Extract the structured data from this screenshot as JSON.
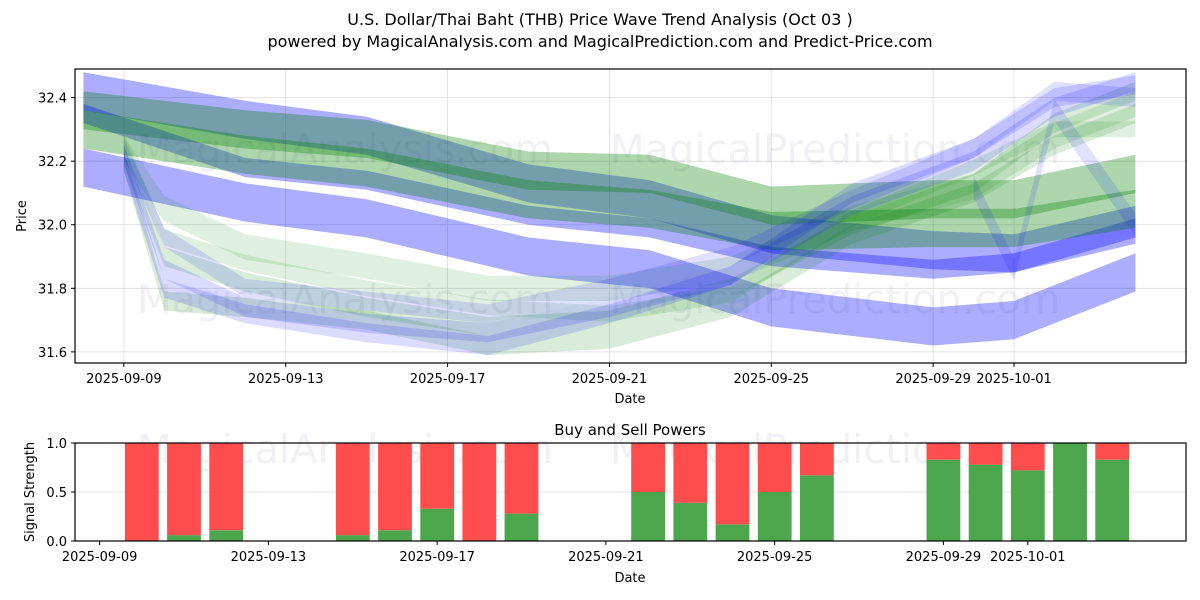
{
  "figure": {
    "title_line1": "U.S. Dollar/Thai Baht (THB) Price Wave Trend Analysis (Oct 03 )",
    "title_line2": "powered by MagicalAnalysis.com and MagicalPrediction.com and Predict-Price.com",
    "watermarks": [
      "MagicalAnalysis.com",
      "MagicalPrediction.com"
    ]
  },
  "chart_data": [
    {
      "type": "area",
      "title": "",
      "xlabel": "Date",
      "ylabel": "Price",
      "ylim": [
        31.565,
        32.49
      ],
      "xlim": [
        "2025-09-07T19:00",
        "2025-10-05T06:00"
      ],
      "grid": true,
      "x_ticks": [
        "2025-09-09",
        "2025-09-13",
        "2025-09-17",
        "2025-09-21",
        "2025-09-25",
        "2025-09-29",
        "2025-10-01"
      ],
      "y_ticks": [
        31.6,
        31.8,
        32.0,
        32.2,
        32.4
      ],
      "colors": {
        "blue": "#0000ff",
        "green": "#008000"
      },
      "series": [
        {
          "name": "blue-band-upper",
          "color": "blue",
          "opacity": 0.32,
          "width": 0.12,
          "x": [
            "2025-09-08",
            "2025-09-12",
            "2025-09-15",
            "2025-09-19",
            "2025-09-22",
            "2025-09-25",
            "2025-09-29",
            "2025-10-01",
            "2025-10-04"
          ],
          "y": [
            32.42,
            32.33,
            32.28,
            32.13,
            32.08,
            31.97,
            31.92,
            31.91,
            32.0
          ]
        },
        {
          "name": "green-band-upper",
          "color": "green",
          "opacity": 0.32,
          "width": 0.12,
          "x": [
            "2025-09-08",
            "2025-09-12",
            "2025-09-15",
            "2025-09-19",
            "2025-09-22",
            "2025-09-25",
            "2025-09-29",
            "2025-10-01",
            "2025-10-04"
          ],
          "y": [
            32.36,
            32.3,
            32.27,
            32.17,
            32.16,
            32.06,
            32.08,
            32.08,
            32.16
          ]
        },
        {
          "name": "blue-band-middle",
          "color": "blue",
          "opacity": 0.32,
          "width": 0.06,
          "x": [
            "2025-09-08",
            "2025-09-12",
            "2025-09-15",
            "2025-09-19",
            "2025-09-22",
            "2025-09-25",
            "2025-09-29",
            "2025-10-01",
            "2025-10-04"
          ],
          "y": [
            32.35,
            32.18,
            32.14,
            32.03,
            31.99,
            31.9,
            31.86,
            31.88,
            31.99
          ]
        },
        {
          "name": "blue-band-lower",
          "color": "blue",
          "opacity": 0.32,
          "width": 0.12,
          "x": [
            "2025-09-08",
            "2025-09-12",
            "2025-09-15",
            "2025-09-19",
            "2025-09-22",
            "2025-09-25",
            "2025-09-29",
            "2025-10-01",
            "2025-10-04"
          ],
          "y": [
            32.18,
            32.07,
            32.02,
            31.9,
            31.86,
            31.74,
            31.68,
            31.7,
            31.85
          ]
        },
        {
          "name": "green-band-mid",
          "color": "green",
          "opacity": 0.32,
          "width": 0.12,
          "x": [
            "2025-09-08",
            "2025-09-12",
            "2025-09-15",
            "2025-09-19",
            "2025-09-22",
            "2025-09-25",
            "2025-09-29",
            "2025-10-01",
            "2025-10-04"
          ],
          "y": [
            32.3,
            32.22,
            32.18,
            32.08,
            32.05,
            31.98,
            31.99,
            31.99,
            32.05
          ]
        },
        {
          "name": "green-wave-1",
          "color": "green",
          "opacity": 0.12,
          "width": 0.08,
          "x": [
            "2025-09-09",
            "2025-09-10",
            "2025-09-12",
            "2025-09-15",
            "2025-09-18",
            "2025-09-21",
            "2025-09-24",
            "2025-09-27",
            "2025-09-30",
            "2025-10-02",
            "2025-10-04"
          ],
          "y": [
            32.24,
            32.05,
            31.93,
            31.87,
            31.8,
            31.8,
            31.86,
            32.02,
            32.12,
            32.28,
            32.38
          ]
        },
        {
          "name": "green-wave-2",
          "color": "green",
          "opacity": 0.15,
          "width": 0.06,
          "x": [
            "2025-09-09",
            "2025-09-10",
            "2025-09-12",
            "2025-09-15",
            "2025-09-18",
            "2025-09-21",
            "2025-09-24",
            "2025-09-27",
            "2025-09-30",
            "2025-10-02",
            "2025-10-04"
          ],
          "y": [
            32.22,
            31.9,
            31.82,
            31.74,
            31.68,
            31.7,
            31.8,
            32.0,
            32.13,
            32.32,
            32.42
          ]
        },
        {
          "name": "green-wave-3",
          "color": "green",
          "opacity": 0.15,
          "width": 0.06,
          "x": [
            "2025-09-09",
            "2025-09-10",
            "2025-09-12",
            "2025-09-15",
            "2025-09-18",
            "2025-09-21",
            "2025-09-24",
            "2025-09-27",
            "2025-09-30",
            "2025-10-02",
            "2025-10-04"
          ],
          "y": [
            32.2,
            31.76,
            31.74,
            31.7,
            31.62,
            31.64,
            31.74,
            31.97,
            32.1,
            32.25,
            32.35
          ]
        },
        {
          "name": "green-wave-4",
          "color": "green",
          "opacity": 0.12,
          "width": 0.05,
          "x": [
            "2025-09-09",
            "2025-09-10",
            "2025-09-12",
            "2025-09-15",
            "2025-09-18",
            "2025-09-21",
            "2025-09-24",
            "2025-09-27",
            "2025-09-30",
            "2025-10-02",
            "2025-10-04"
          ],
          "y": [
            32.26,
            31.96,
            31.88,
            31.8,
            31.74,
            31.72,
            31.78,
            32.02,
            32.18,
            32.3,
            32.3
          ]
        },
        {
          "name": "blue-wave-1",
          "color": "blue",
          "opacity": 0.14,
          "width": 0.06,
          "x": [
            "2025-09-09",
            "2025-09-10",
            "2025-09-12",
            "2025-09-15",
            "2025-09-18",
            "2025-09-21",
            "2025-09-24",
            "2025-09-27",
            "2025-09-30",
            "2025-10-02",
            "2025-10-04"
          ],
          "y": [
            32.22,
            31.86,
            31.74,
            31.69,
            31.66,
            31.74,
            31.84,
            32.06,
            32.2,
            32.37,
            32.45
          ]
        },
        {
          "name": "blue-wave-2",
          "color": "blue",
          "opacity": 0.14,
          "width": 0.06,
          "x": [
            "2025-09-09",
            "2025-09-10",
            "2025-09-12",
            "2025-09-15",
            "2025-09-18",
            "2025-09-21",
            "2025-09-24",
            "2025-09-27",
            "2025-09-30",
            "2025-10-02",
            "2025-10-04"
          ],
          "y": [
            32.2,
            31.8,
            31.72,
            31.66,
            31.62,
            31.72,
            31.84,
            32.1,
            32.24,
            32.4,
            32.44
          ]
        },
        {
          "name": "blue-wave-3",
          "color": "blue",
          "opacity": 0.12,
          "width": 0.06,
          "x": [
            "2025-09-09",
            "2025-09-10",
            "2025-09-12",
            "2025-09-15",
            "2025-09-18",
            "2025-09-21",
            "2025-09-24",
            "2025-09-27",
            "2025-09-30",
            "2025-10-02",
            "2025-10-04"
          ],
          "y": [
            32.24,
            31.96,
            31.8,
            31.76,
            31.72,
            31.8,
            31.9,
            32.08,
            32.24,
            32.42,
            32.4
          ]
        },
        {
          "name": "blue-wave-zigzag",
          "color": "blue",
          "opacity": 0.12,
          "width": 0.07,
          "x": [
            "2025-09-30",
            "2025-10-01",
            "2025-10-02",
            "2025-10-04"
          ],
          "y": [
            32.12,
            31.86,
            32.36,
            32.0
          ]
        }
      ]
    },
    {
      "type": "bar",
      "title": "Buy and Sell Powers",
      "xlabel": "Date",
      "ylabel": "Signal Strength",
      "ylim": [
        0,
        1.0
      ],
      "xlim": [
        "2025-09-08T10:00",
        "2025-10-04T18:00"
      ],
      "grid": true,
      "x_ticks": [
        "2025-09-09",
        "2025-09-13",
        "2025-09-17",
        "2025-09-21",
        "2025-09-25",
        "2025-09-29",
        "2025-10-01"
      ],
      "y_ticks": [
        "0.0",
        "0.5",
        "1.0"
      ],
      "colors": {
        "buy": "#4ca64c",
        "sell": "#ff4c4c"
      },
      "categories": [
        "2025-09-10",
        "2025-09-11",
        "2025-09-12",
        "2025-09-15",
        "2025-09-16",
        "2025-09-17",
        "2025-09-18",
        "2025-09-19",
        "2025-09-22",
        "2025-09-23",
        "2025-09-24",
        "2025-09-25",
        "2025-09-26",
        "2025-09-29",
        "2025-09-30",
        "2025-10-01",
        "2025-10-02",
        "2025-10-03"
      ],
      "series": [
        {
          "name": "Buy",
          "values": [
            0.0,
            0.06,
            0.11,
            0.06,
            0.11,
            0.33,
            0.0,
            0.28,
            0.5,
            0.39,
            0.17,
            0.5,
            0.67,
            0.83,
            0.78,
            0.72,
            1.0,
            0.83
          ]
        },
        {
          "name": "Sell",
          "values": [
            1.0,
            0.94,
            0.89,
            0.94,
            0.89,
            0.67,
            1.0,
            0.72,
            0.5,
            0.61,
            0.83,
            0.5,
            0.33,
            0.17,
            0.22,
            0.28,
            0.0,
            0.17
          ]
        }
      ]
    }
  ]
}
